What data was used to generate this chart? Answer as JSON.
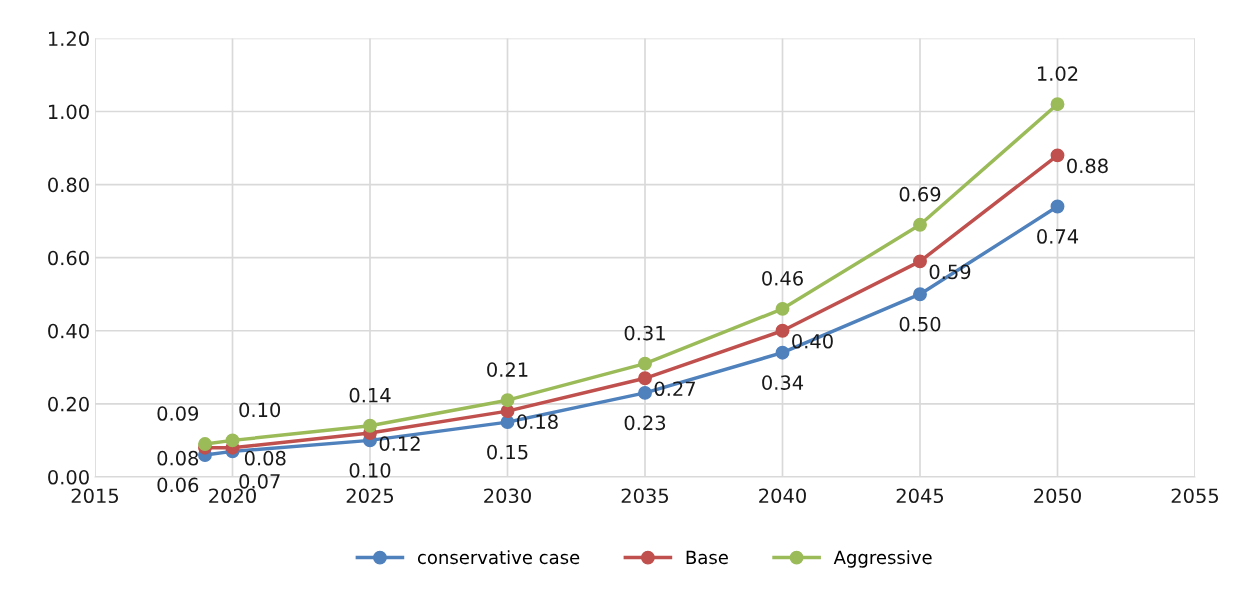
{
  "chart_data": {
    "type": "line",
    "x": [
      2019,
      2020,
      2025,
      2030,
      2035,
      2040,
      2045,
      2050
    ],
    "series": [
      {
        "name": "conservative case",
        "color": "#4f81bd",
        "values": [
          0.06,
          0.07,
          0.1,
          0.15,
          0.23,
          0.34,
          0.5,
          0.74
        ],
        "value_labels": [
          "0.06",
          "0.07",
          "0.10",
          "0.15",
          "0.23",
          "0.34",
          "0.50",
          "0.74"
        ]
      },
      {
        "name": "Base",
        "color": "#c0504d",
        "values": [
          0.08,
          0.08,
          0.12,
          0.18,
          0.27,
          0.4,
          0.59,
          0.88
        ],
        "value_labels": [
          "0.08",
          "0.08",
          "0.12",
          "0.18",
          "0.27",
          "0.40",
          "0.59",
          "0.88"
        ]
      },
      {
        "name": "Aggressive",
        "color": "#9bbb59",
        "values": [
          0.09,
          0.1,
          0.14,
          0.21,
          0.31,
          0.46,
          0.69,
          1.02
        ],
        "value_labels": [
          "0.09",
          "0.10",
          "0.14",
          "0.21",
          "0.31",
          "0.46",
          "0.69",
          "1.02"
        ]
      }
    ],
    "xlim": [
      2015,
      2055
    ],
    "xticks": [
      2015,
      2020,
      2025,
      2030,
      2035,
      2040,
      2045,
      2050,
      2055
    ],
    "ylim": [
      0,
      1.2
    ],
    "yticks": [
      {
        "value": 0,
        "label": "0.00"
      },
      {
        "value": 0.2,
        "label": "0.20"
      },
      {
        "value": 0.4,
        "label": "0.40"
      },
      {
        "value": 0.6,
        "label": "0.60"
      },
      {
        "value": 0.8,
        "label": "0.80"
      },
      {
        "value": 1.0,
        "label": "1.00"
      },
      {
        "value": 1.2,
        "label": "1.20"
      }
    ],
    "grid": true,
    "legend": "bottom",
    "marker": "circle",
    "line_style": "solid"
  }
}
